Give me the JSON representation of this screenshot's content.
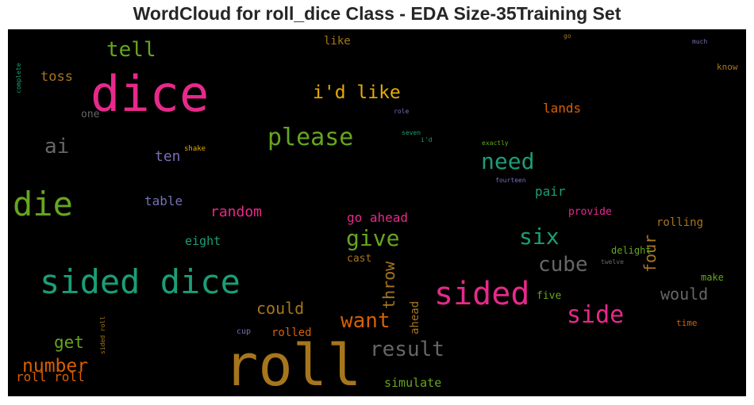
{
  "chart_data": {
    "type": "wordcloud",
    "title": "WordCloud for roll_dice Class - EDA Size-35Training Set",
    "background": "#000000",
    "words": [
      {
        "text": "roll",
        "color": "#a6761d"
      },
      {
        "text": "dice",
        "color": "#e7298a"
      },
      {
        "text": "sided dice",
        "color": "#1b9e77"
      },
      {
        "text": "die",
        "color": "#66a61e"
      },
      {
        "text": "sided",
        "color": "#e7298a"
      },
      {
        "text": "side",
        "color": "#e7298a"
      },
      {
        "text": "please",
        "color": "#66a61e"
      },
      {
        "text": "need",
        "color": "#1b9e77"
      },
      {
        "text": "give",
        "color": "#66a61e"
      },
      {
        "text": "six",
        "color": "#1b9e77"
      },
      {
        "text": "cube",
        "color": "#666666"
      },
      {
        "text": "want",
        "color": "#d95f02"
      },
      {
        "text": "result",
        "color": "#666666"
      },
      {
        "text": "tell",
        "color": "#66a61e"
      },
      {
        "text": "i'd like",
        "color": "#e6ab02"
      },
      {
        "text": "ai",
        "color": "#666666"
      },
      {
        "text": "number",
        "color": "#d95f02"
      },
      {
        "text": "throw",
        "color": "#a6761d"
      },
      {
        "text": "four",
        "color": "#a6761d"
      },
      {
        "text": "would",
        "color": "#666666"
      },
      {
        "text": "could",
        "color": "#a6761d"
      },
      {
        "text": "get",
        "color": "#66a61e"
      },
      {
        "text": "random",
        "color": "#e7298a"
      },
      {
        "text": "toss",
        "color": "#a6761d"
      },
      {
        "text": "ten",
        "color": "#7570b3"
      },
      {
        "text": "go ahead",
        "color": "#e7298a"
      },
      {
        "text": "pair",
        "color": "#1b9e77"
      },
      {
        "text": "lands",
        "color": "#d95f02"
      },
      {
        "text": "table",
        "color": "#7570b3"
      },
      {
        "text": "roll roll",
        "color": "#d95f02"
      },
      {
        "text": "simulate",
        "color": "#66a61e"
      },
      {
        "text": "eight",
        "color": "#1b9e77"
      },
      {
        "text": "rolling",
        "color": "#a6761d"
      },
      {
        "text": "rolled",
        "color": "#d95f02"
      },
      {
        "text": "like",
        "color": "#a6761d"
      },
      {
        "text": "ahead",
        "color": "#a6761d"
      },
      {
        "text": "cast",
        "color": "#a6761d"
      },
      {
        "text": "five",
        "color": "#66a61e"
      },
      {
        "text": "make",
        "color": "#66a61e"
      },
      {
        "text": "provide",
        "color": "#e7298a"
      },
      {
        "text": "delight",
        "color": "#66a61e"
      },
      {
        "text": "one",
        "color": "#666666"
      },
      {
        "text": "know",
        "color": "#a6761d"
      },
      {
        "text": "time",
        "color": "#d95f02"
      },
      {
        "text": "cup",
        "color": "#7570b3"
      },
      {
        "text": "shake",
        "color": "#e6ab02"
      },
      {
        "text": "fourteen",
        "color": "#7570b3"
      },
      {
        "text": "exactly",
        "color": "#66a61e"
      },
      {
        "text": "twelve",
        "color": "#666666"
      },
      {
        "text": "seven",
        "color": "#1b9e77"
      },
      {
        "text": "i'd",
        "color": "#1b9e77"
      },
      {
        "text": "role",
        "color": "#7570b3"
      },
      {
        "text": "much",
        "color": "#7570b3"
      },
      {
        "text": "go",
        "color": "#a6761d"
      },
      {
        "text": "complete",
        "color": "#1b9e77"
      },
      {
        "text": "sided roll",
        "color": "#a6761d"
      }
    ]
  }
}
